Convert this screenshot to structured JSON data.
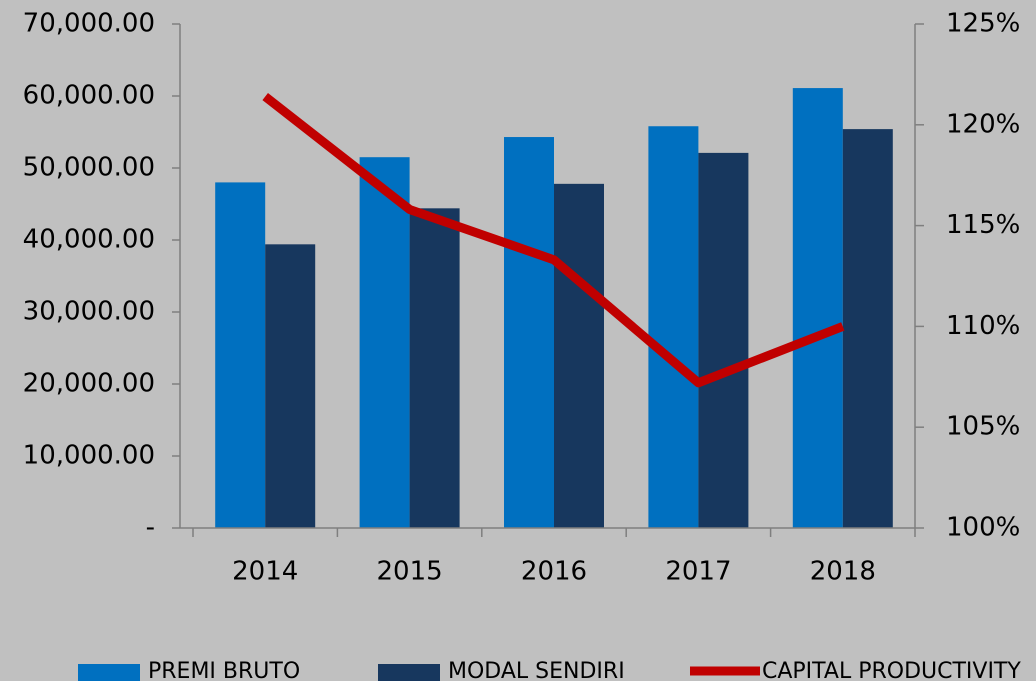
{
  "chart_data": {
    "type": "bar_line",
    "categories": [
      "2014",
      "2015",
      "2016",
      "2017",
      "2018"
    ],
    "series": [
      {
        "name": "PREMI BRUTO",
        "type": "bar",
        "color": "#0070c0",
        "values": [
          48000,
          51500,
          54300,
          55800,
          61100
        ]
      },
      {
        "name": "MODAL SENDIRI",
        "type": "bar",
        "color": "#17375e",
        "values": [
          39400,
          44400,
          47800,
          52100,
          55400
        ]
      },
      {
        "name": "CAPITAL PRODUCTIVITY",
        "type": "line",
        "axis": "y2",
        "color": "#c00000",
        "values": [
          121.4,
          115.8,
          113.3,
          107.2,
          110.0
        ]
      }
    ],
    "ylim": [
      0,
      70000
    ],
    "yticks": [
      {
        "value": 0,
        "label": "-"
      },
      {
        "value": 10000,
        "label": "10,000.00"
      },
      {
        "value": 20000,
        "label": "20,000.00"
      },
      {
        "value": 30000,
        "label": "30,000.00"
      },
      {
        "value": 40000,
        "label": "40,000.00"
      },
      {
        "value": 50000,
        "label": "50,000.00"
      },
      {
        "value": 60000,
        "label": "60,000.00"
      },
      {
        "value": 70000,
        "label": "70,000.00"
      }
    ],
    "y2lim": [
      100,
      125
    ],
    "y2ticks": [
      {
        "value": 100,
        "label": "100%"
      },
      {
        "value": 105,
        "label": "105%"
      },
      {
        "value": 110,
        "label": "110%"
      },
      {
        "value": 115,
        "label": "115%"
      },
      {
        "value": 120,
        "label": "120%"
      },
      {
        "value": 125,
        "label": "125%"
      }
    ],
    "legend": "bottom"
  }
}
